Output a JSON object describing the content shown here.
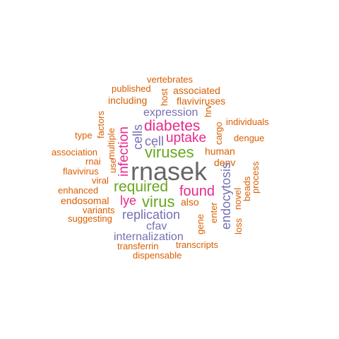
{
  "palette": {
    "orange": "#d95f02",
    "purple": "#7570b3",
    "magenta": "#e7298a",
    "green": "#66a61e",
    "gray": "#666666"
  },
  "words": [
    {
      "text": "rnasek",
      "color": "gray",
      "vertical": false
    },
    {
      "text": "viruses",
      "color": "green",
      "vertical": false
    },
    {
      "text": "required",
      "color": "green",
      "vertical": false
    },
    {
      "text": "virus",
      "color": "green",
      "vertical": false
    },
    {
      "text": "diabetes",
      "color": "magenta",
      "vertical": false
    },
    {
      "text": "uptake",
      "color": "magenta",
      "vertical": false
    },
    {
      "text": "found",
      "color": "magenta",
      "vertical": false
    },
    {
      "text": "lye",
      "color": "magenta",
      "vertical": false
    },
    {
      "text": "infection",
      "color": "magenta",
      "vertical": true
    },
    {
      "text": "replication",
      "color": "purple",
      "vertical": false
    },
    {
      "text": "expression",
      "color": "purple",
      "vertical": false
    },
    {
      "text": "cell",
      "color": "purple",
      "vertical": false
    },
    {
      "text": "cells",
      "color": "purple",
      "vertical": true
    },
    {
      "text": "internalization",
      "color": "purple",
      "vertical": false
    },
    {
      "text": "cfav",
      "color": "purple",
      "vertical": false
    },
    {
      "text": "endocytosis",
      "color": "purple",
      "vertical": true
    },
    {
      "text": "vertebrates",
      "color": "orange",
      "vertical": false
    },
    {
      "text": "published",
      "color": "orange",
      "vertical": false
    },
    {
      "text": "associated",
      "color": "orange",
      "vertical": false
    },
    {
      "text": "host",
      "color": "orange",
      "vertical": true
    },
    {
      "text": "including",
      "color": "orange",
      "vertical": false
    },
    {
      "text": "flaviviruses",
      "color": "orange",
      "vertical": false
    },
    {
      "text": "hrv",
      "color": "orange",
      "vertical": true
    },
    {
      "text": "factors",
      "color": "orange",
      "vertical": true
    },
    {
      "text": "individuals",
      "color": "orange",
      "vertical": false
    },
    {
      "text": "type",
      "color": "orange",
      "vertical": false
    },
    {
      "text": "multiple",
      "color": "orange",
      "vertical": true
    },
    {
      "text": "cargo",
      "color": "orange",
      "vertical": true
    },
    {
      "text": "dengue",
      "color": "orange",
      "vertical": false
    },
    {
      "text": "association",
      "color": "orange",
      "vertical": false
    },
    {
      "text": "human",
      "color": "orange",
      "vertical": false
    },
    {
      "text": "rnai",
      "color": "orange",
      "vertical": false
    },
    {
      "text": "use",
      "color": "orange",
      "vertical": true
    },
    {
      "text": "denv",
      "color": "orange",
      "vertical": false
    },
    {
      "text": "process",
      "color": "orange",
      "vertical": true
    },
    {
      "text": "beads",
      "color": "orange",
      "vertical": true
    },
    {
      "text": "flavivirus",
      "color": "orange",
      "vertical": false
    },
    {
      "text": "viral",
      "color": "orange",
      "vertical": false
    },
    {
      "text": "novel",
      "color": "orange",
      "vertical": true
    },
    {
      "text": "enhanced",
      "color": "orange",
      "vertical": false
    },
    {
      "text": "endosomal",
      "color": "orange",
      "vertical": false
    },
    {
      "text": "also",
      "color": "orange",
      "vertical": false
    },
    {
      "text": "variants",
      "color": "orange",
      "vertical": false
    },
    {
      "text": "enter",
      "color": "orange",
      "vertical": true
    },
    {
      "text": "suggesting",
      "color": "orange",
      "vertical": false
    },
    {
      "text": "gene",
      "color": "orange",
      "vertical": true
    },
    {
      "text": "loss",
      "color": "orange",
      "vertical": true
    },
    {
      "text": "transferrin",
      "color": "orange",
      "vertical": false
    },
    {
      "text": "transcripts",
      "color": "orange",
      "vertical": false
    },
    {
      "text": "dispensable",
      "color": "orange",
      "vertical": false
    }
  ]
}
